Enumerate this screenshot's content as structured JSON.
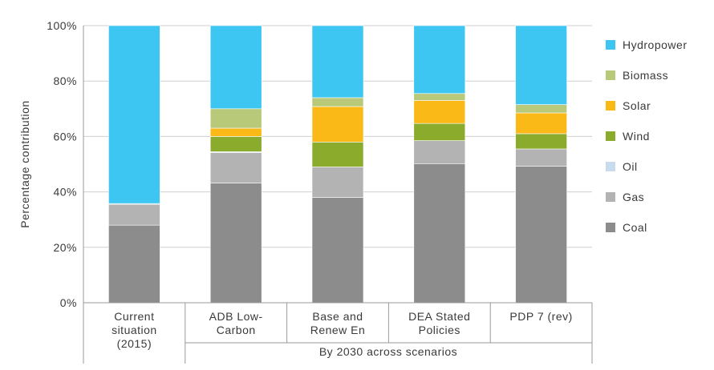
{
  "chart_data": {
    "type": "bar",
    "stacked": true,
    "ylabel": "Percentage contribution",
    "ylim": [
      0,
      100
    ],
    "yticks": [
      "0%",
      "20%",
      "40%",
      "60%",
      "80%",
      "100%"
    ],
    "grid": true,
    "legend_position": "right",
    "categories": [
      [
        "Current",
        "situation",
        "(2015)"
      ],
      [
        "ADB Low-",
        "Carbon"
      ],
      [
        "Base and",
        "Renew En"
      ],
      [
        "DEA Stated",
        "Policies"
      ],
      [
        "PDP 7 (rev)"
      ]
    ],
    "group_label": "By 2030 across scenarios",
    "series": [
      {
        "name": "Coal",
        "color": "#8c8c8c",
        "values": [
          28,
          43.2,
          38,
          50.2,
          49.3
        ]
      },
      {
        "name": "Gas",
        "color": "#b3b3b3",
        "values": [
          7.5,
          11,
          11,
          8.3,
          6.2
        ]
      },
      {
        "name": "Oil",
        "color": "#c8dcee",
        "values": [
          0.3,
          0.3,
          0,
          0,
          0
        ]
      },
      {
        "name": "Wind",
        "color": "#8aab2c",
        "values": [
          0,
          5.5,
          9,
          6.2,
          5.5
        ]
      },
      {
        "name": "Solar",
        "color": "#fbb918",
        "values": [
          0,
          3,
          12.8,
          8.3,
          7.5
        ]
      },
      {
        "name": "Biomass",
        "color": "#b8c97a",
        "values": [
          0,
          7,
          3.2,
          2.5,
          3
        ]
      },
      {
        "name": "Hydropower",
        "color": "#3ec6f2",
        "values": [
          64.2,
          30,
          26,
          24.5,
          28.5
        ]
      }
    ],
    "legend_order": [
      "Hydropower",
      "Biomass",
      "Solar",
      "Wind",
      "Oil",
      "Gas",
      "Coal"
    ]
  }
}
